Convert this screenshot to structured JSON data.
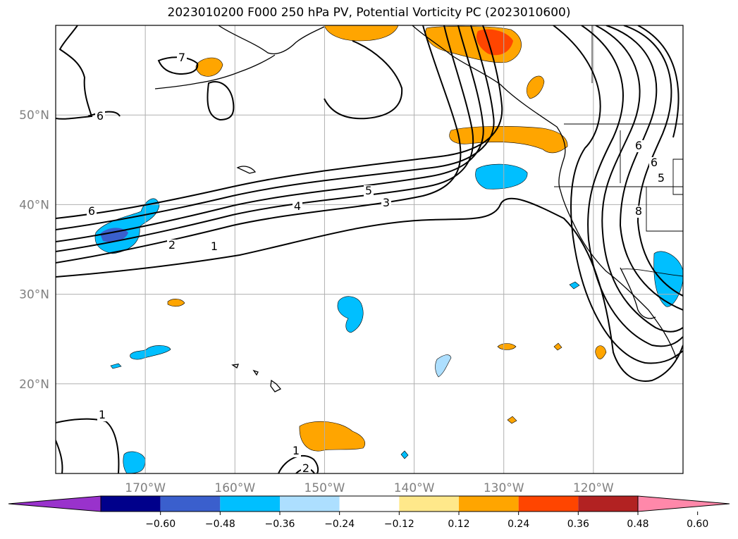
{
  "title": "2023010200 F000 250 hPa PV, Potential Vorticity PC (2023010600)",
  "map": {
    "lon_range": [
      -180,
      -110
    ],
    "lat_range": [
      10,
      60
    ],
    "lon_ticks": [
      {
        "value": -170,
        "label": "170°W"
      },
      {
        "value": -160,
        "label": "160°W"
      },
      {
        "value": -150,
        "label": "150°W"
      },
      {
        "value": -140,
        "label": "140°W"
      },
      {
        "value": -130,
        "label": "130°W"
      },
      {
        "value": -120,
        "label": "120°W"
      }
    ],
    "lat_ticks": [
      {
        "value": 20,
        "label": "20°N"
      },
      {
        "value": 30,
        "label": "30°N"
      },
      {
        "value": 40,
        "label": "40°N"
      },
      {
        "value": 50,
        "label": "50°N"
      }
    ],
    "grid": true
  },
  "contour_labels": [
    "1",
    "2",
    "3",
    "4",
    "5",
    "6",
    "6",
    "7",
    "8",
    "1",
    "1",
    "2",
    "6",
    "6",
    "5"
  ],
  "colorbar": {
    "extend": "both",
    "ticks": [
      "−0.60",
      "−0.48",
      "−0.36",
      "−0.24",
      "−0.12",
      "0.12",
      "0.24",
      "0.36",
      "0.48",
      "0.60"
    ],
    "colors": [
      "#9932CC",
      "#00008B",
      "#3A5FCD",
      "#00BFFF",
      "#ADDFFF",
      "#FFFFFF",
      "#FFE88A",
      "#FFA500",
      "#FF4500",
      "#B22222",
      "#FF88AA"
    ]
  }
}
